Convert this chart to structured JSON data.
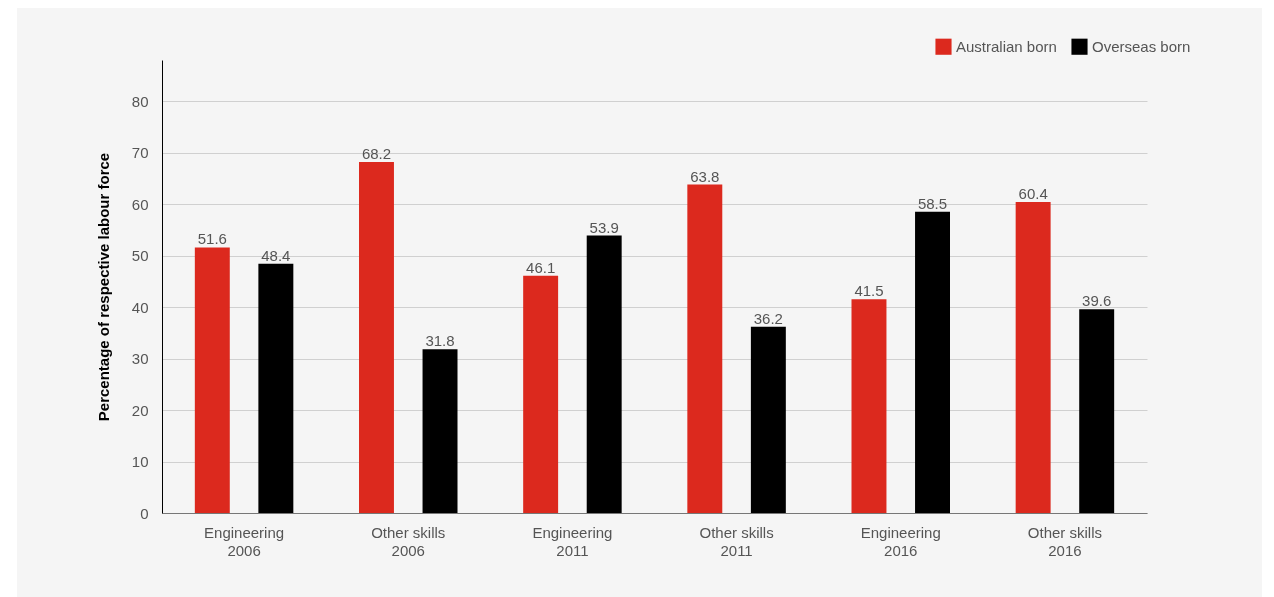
{
  "chart_data": {
    "type": "bar",
    "ylabel": "Percentage of respective labour force",
    "categories": [
      "Engineering\n2006",
      "Other skills\n2006",
      "Engineering\n2011",
      "Other skills\n2011",
      "Engineering\n2016",
      "Other skills\n2016"
    ],
    "series": [
      {
        "name": "Australian born",
        "color": "#dc291e",
        "values": [
          51.6,
          68.2,
          46.1,
          63.8,
          41.5,
          60.4
        ]
      },
      {
        "name": "Overseas born",
        "color": "#000000",
        "values": [
          48.4,
          31.8,
          53.9,
          36.2,
          58.5,
          39.6
        ]
      }
    ],
    "ylim": [
      0,
      88
    ],
    "yticks": [
      0,
      10,
      20,
      30,
      40,
      50,
      60,
      70,
      80
    ],
    "grid": "y",
    "legend": "top right",
    "data_labels": true
  }
}
